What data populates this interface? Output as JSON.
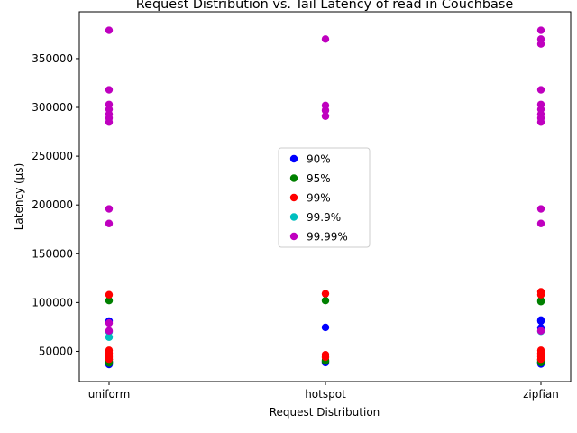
{
  "chart_data": {
    "type": "scatter",
    "title": "Request Distribution vs. Tail Latency of read in Couchbase",
    "xlabel": "Request Distribution",
    "ylabel": "Latency (µs)",
    "categories": [
      "uniform",
      "hotspot",
      "zipfian"
    ],
    "ylim": [
      19000,
      398000
    ],
    "yticks": [
      50000,
      100000,
      150000,
      200000,
      250000,
      300000,
      350000
    ],
    "ytick_labels": [
      "50000",
      "100000",
      "150000",
      "200000",
      "250000",
      "300000",
      "350000"
    ],
    "grid": false,
    "legend_position": "center",
    "series": [
      {
        "name": "90%",
        "color": "#0000ff",
        "points": [
          {
            "x": "uniform",
            "y": 36500
          },
          {
            "x": "uniform",
            "y": 37500
          },
          {
            "x": "uniform",
            "y": 38500
          },
          {
            "x": "uniform",
            "y": 39500
          },
          {
            "x": "uniform",
            "y": 81000
          },
          {
            "x": "hotspot",
            "y": 38500
          },
          {
            "x": "hotspot",
            "y": 39500
          },
          {
            "x": "hotspot",
            "y": 74500
          },
          {
            "x": "zipfian",
            "y": 37000
          },
          {
            "x": "zipfian",
            "y": 38000
          },
          {
            "x": "zipfian",
            "y": 39000
          },
          {
            "x": "zipfian",
            "y": 74000
          },
          {
            "x": "zipfian",
            "y": 81000
          },
          {
            "x": "zipfian",
            "y": 82000
          }
        ]
      },
      {
        "name": "95%",
        "color": "#008000",
        "points": [
          {
            "x": "uniform",
            "y": 38000
          },
          {
            "x": "uniform",
            "y": 39000
          },
          {
            "x": "uniform",
            "y": 40000
          },
          {
            "x": "uniform",
            "y": 41500
          },
          {
            "x": "uniform",
            "y": 102000
          },
          {
            "x": "hotspot",
            "y": 40000
          },
          {
            "x": "hotspot",
            "y": 41000
          },
          {
            "x": "hotspot",
            "y": 102000
          },
          {
            "x": "zipfian",
            "y": 38500
          },
          {
            "x": "zipfian",
            "y": 39500
          },
          {
            "x": "zipfian",
            "y": 40500
          },
          {
            "x": "zipfian",
            "y": 41500
          },
          {
            "x": "zipfian",
            "y": 101000
          },
          {
            "x": "zipfian",
            "y": 102000
          }
        ]
      },
      {
        "name": "99%",
        "color": "#ff0000",
        "points": [
          {
            "x": "uniform",
            "y": 42000
          },
          {
            "x": "uniform",
            "y": 44000
          },
          {
            "x": "uniform",
            "y": 46000
          },
          {
            "x": "uniform",
            "y": 48000
          },
          {
            "x": "uniform",
            "y": 51000
          },
          {
            "x": "uniform",
            "y": 108000
          },
          {
            "x": "hotspot",
            "y": 44000
          },
          {
            "x": "hotspot",
            "y": 46500
          },
          {
            "x": "hotspot",
            "y": 109000
          },
          {
            "x": "zipfian",
            "y": 42000
          },
          {
            "x": "zipfian",
            "y": 44500
          },
          {
            "x": "zipfian",
            "y": 46500
          },
          {
            "x": "zipfian",
            "y": 48000
          },
          {
            "x": "zipfian",
            "y": 51000
          },
          {
            "x": "zipfian",
            "y": 108000
          },
          {
            "x": "zipfian",
            "y": 111000
          }
        ]
      },
      {
        "name": "99.9%",
        "color": "#00bfbf",
        "points": [
          {
            "x": "uniform",
            "y": 64500
          },
          {
            "x": "uniform",
            "y": 70000
          },
          {
            "x": "zipfian",
            "y": 70500
          }
        ]
      },
      {
        "name": "99.99%",
        "color": "#bf00bf",
        "points": [
          {
            "x": "uniform",
            "y": 71000
          },
          {
            "x": "uniform",
            "y": 79000
          },
          {
            "x": "uniform",
            "y": 181000
          },
          {
            "x": "uniform",
            "y": 196000
          },
          {
            "x": "uniform",
            "y": 285000
          },
          {
            "x": "uniform",
            "y": 289000
          },
          {
            "x": "uniform",
            "y": 293000
          },
          {
            "x": "uniform",
            "y": 298000
          },
          {
            "x": "uniform",
            "y": 303000
          },
          {
            "x": "uniform",
            "y": 318000
          },
          {
            "x": "uniform",
            "y": 379000
          },
          {
            "x": "hotspot",
            "y": 291000
          },
          {
            "x": "hotspot",
            "y": 297000
          },
          {
            "x": "hotspot",
            "y": 302000
          },
          {
            "x": "hotspot",
            "y": 370000
          },
          {
            "x": "zipfian",
            "y": 71000
          },
          {
            "x": "zipfian",
            "y": 181000
          },
          {
            "x": "zipfian",
            "y": 196000
          },
          {
            "x": "zipfian",
            "y": 285000
          },
          {
            "x": "zipfian",
            "y": 289000
          },
          {
            "x": "zipfian",
            "y": 293000
          },
          {
            "x": "zipfian",
            "y": 298000
          },
          {
            "x": "zipfian",
            "y": 303000
          },
          {
            "x": "zipfian",
            "y": 318000
          },
          {
            "x": "zipfian",
            "y": 365000
          },
          {
            "x": "zipfian",
            "y": 370000
          },
          {
            "x": "zipfian",
            "y": 379000
          }
        ]
      }
    ]
  }
}
